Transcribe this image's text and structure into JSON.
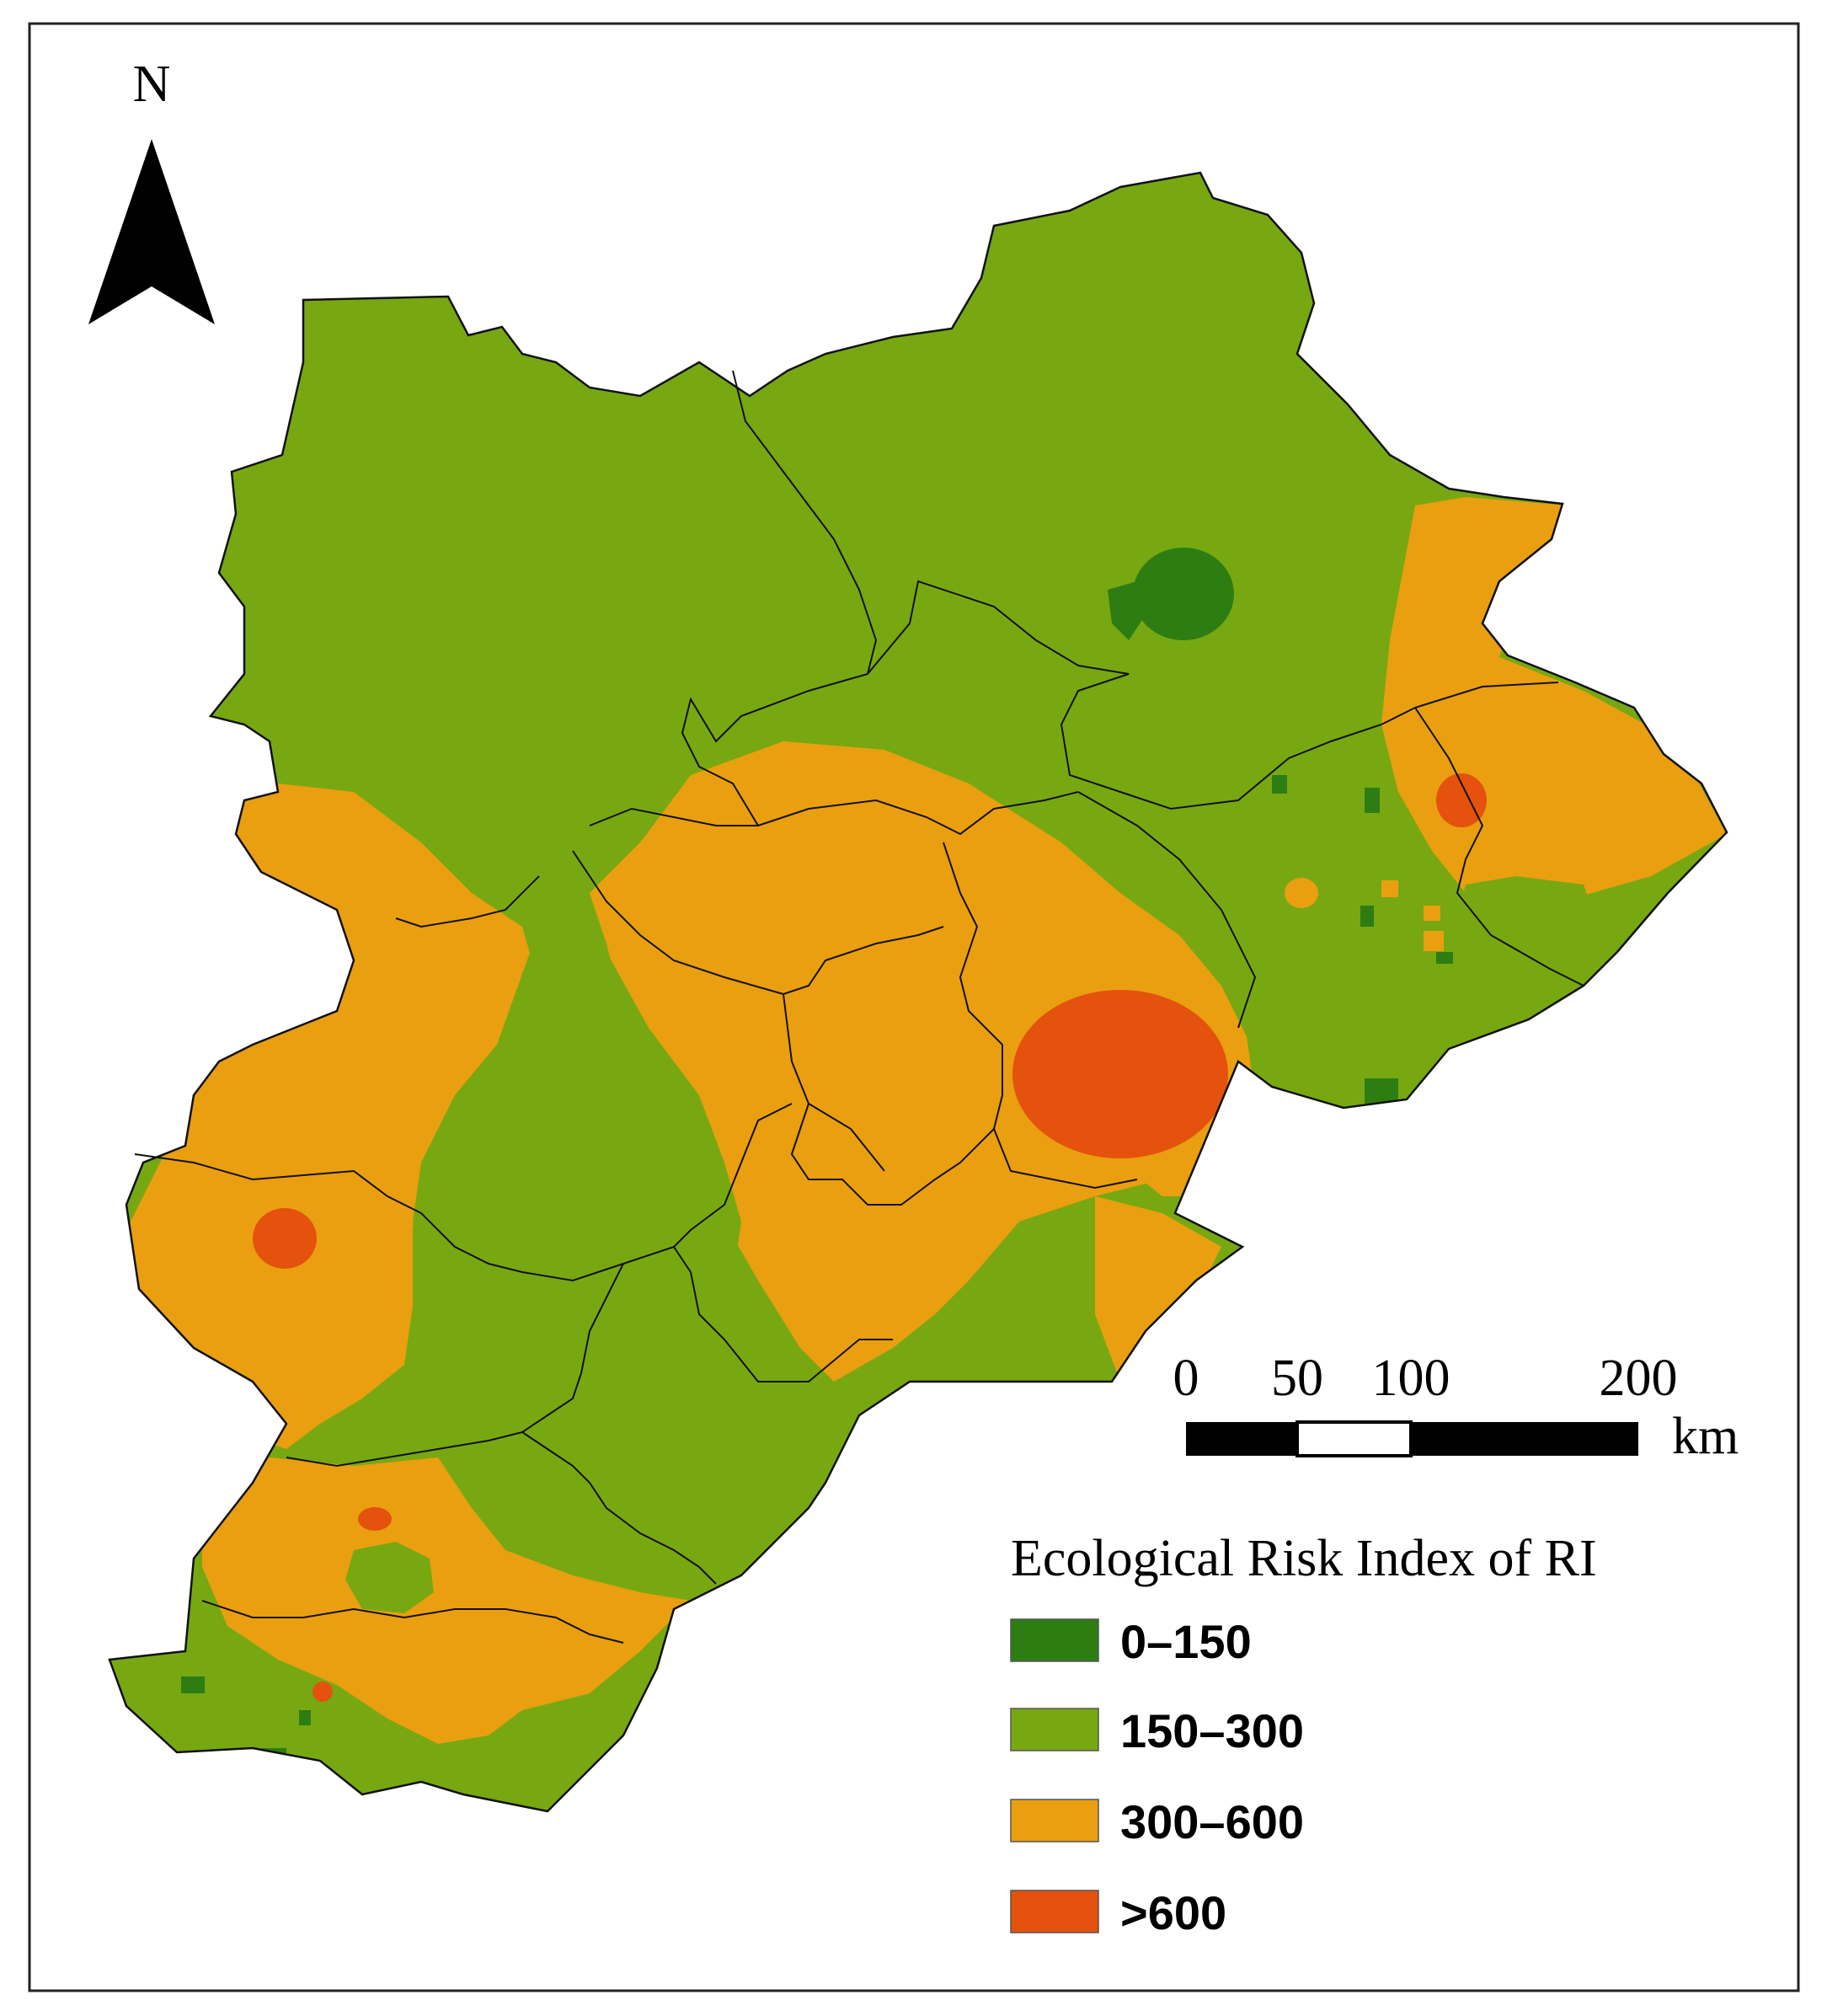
{
  "north_arrow": {
    "label": "N"
  },
  "scale_bar": {
    "ticks": [
      "0",
      "50",
      "100",
      "200"
    ],
    "unit": "km"
  },
  "legend": {
    "title": "Ecological Risk Index of RI",
    "items": [
      {
        "label": "0–150",
        "color": "#2e7d12"
      },
      {
        "label": "150–300",
        "color": "#77a812"
      },
      {
        "label": "300–600",
        "color": "#e99f10"
      },
      {
        "label": ">600",
        "color": "#e4520d"
      }
    ]
  },
  "colors": {
    "very_low": "#2e7d12",
    "low": "#77a812",
    "medium": "#e99f10",
    "high": "#e4520d",
    "boundary": "#111111"
  }
}
